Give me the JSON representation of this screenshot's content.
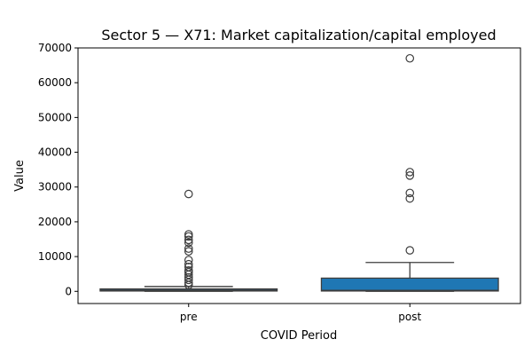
{
  "chart_data": {
    "type": "box",
    "title": "Sector 5 — X71: Market capitalization/capital employed",
    "xlabel": "COVID Period",
    "ylabel": "Value",
    "categories": [
      "pre",
      "post"
    ],
    "ylim": [
      -3500,
      70000
    ],
    "yticks": [
      0,
      10000,
      20000,
      30000,
      40000,
      50000,
      60000,
      70000
    ],
    "ytick_labels": [
      "0",
      "10000",
      "20000",
      "30000",
      "40000",
      "50000",
      "60000",
      "70000"
    ],
    "grid": false,
    "legend": "none",
    "series": [
      {
        "category": "pre",
        "whisker_low": 0,
        "q1": 100,
        "median": 350,
        "q3": 700,
        "whisker_high": 1400,
        "outliers": [
          1800,
          2500,
          3300,
          4000,
          4800,
          5500,
          6000,
          7000,
          7800,
          9000,
          11500,
          12300,
          14000,
          14800,
          15800,
          16400,
          28000
        ]
      },
      {
        "category": "post",
        "whisker_low": 0,
        "q1": 100,
        "median": 300,
        "q3": 3800,
        "whisker_high": 8300,
        "outliers": [
          11800,
          26700,
          28300,
          33300,
          34300,
          67000
        ]
      }
    ],
    "colors": {
      "box_fill": "#1f77b4",
      "box_edge": "#3d3d3d",
      "axis": "#000000"
    }
  }
}
